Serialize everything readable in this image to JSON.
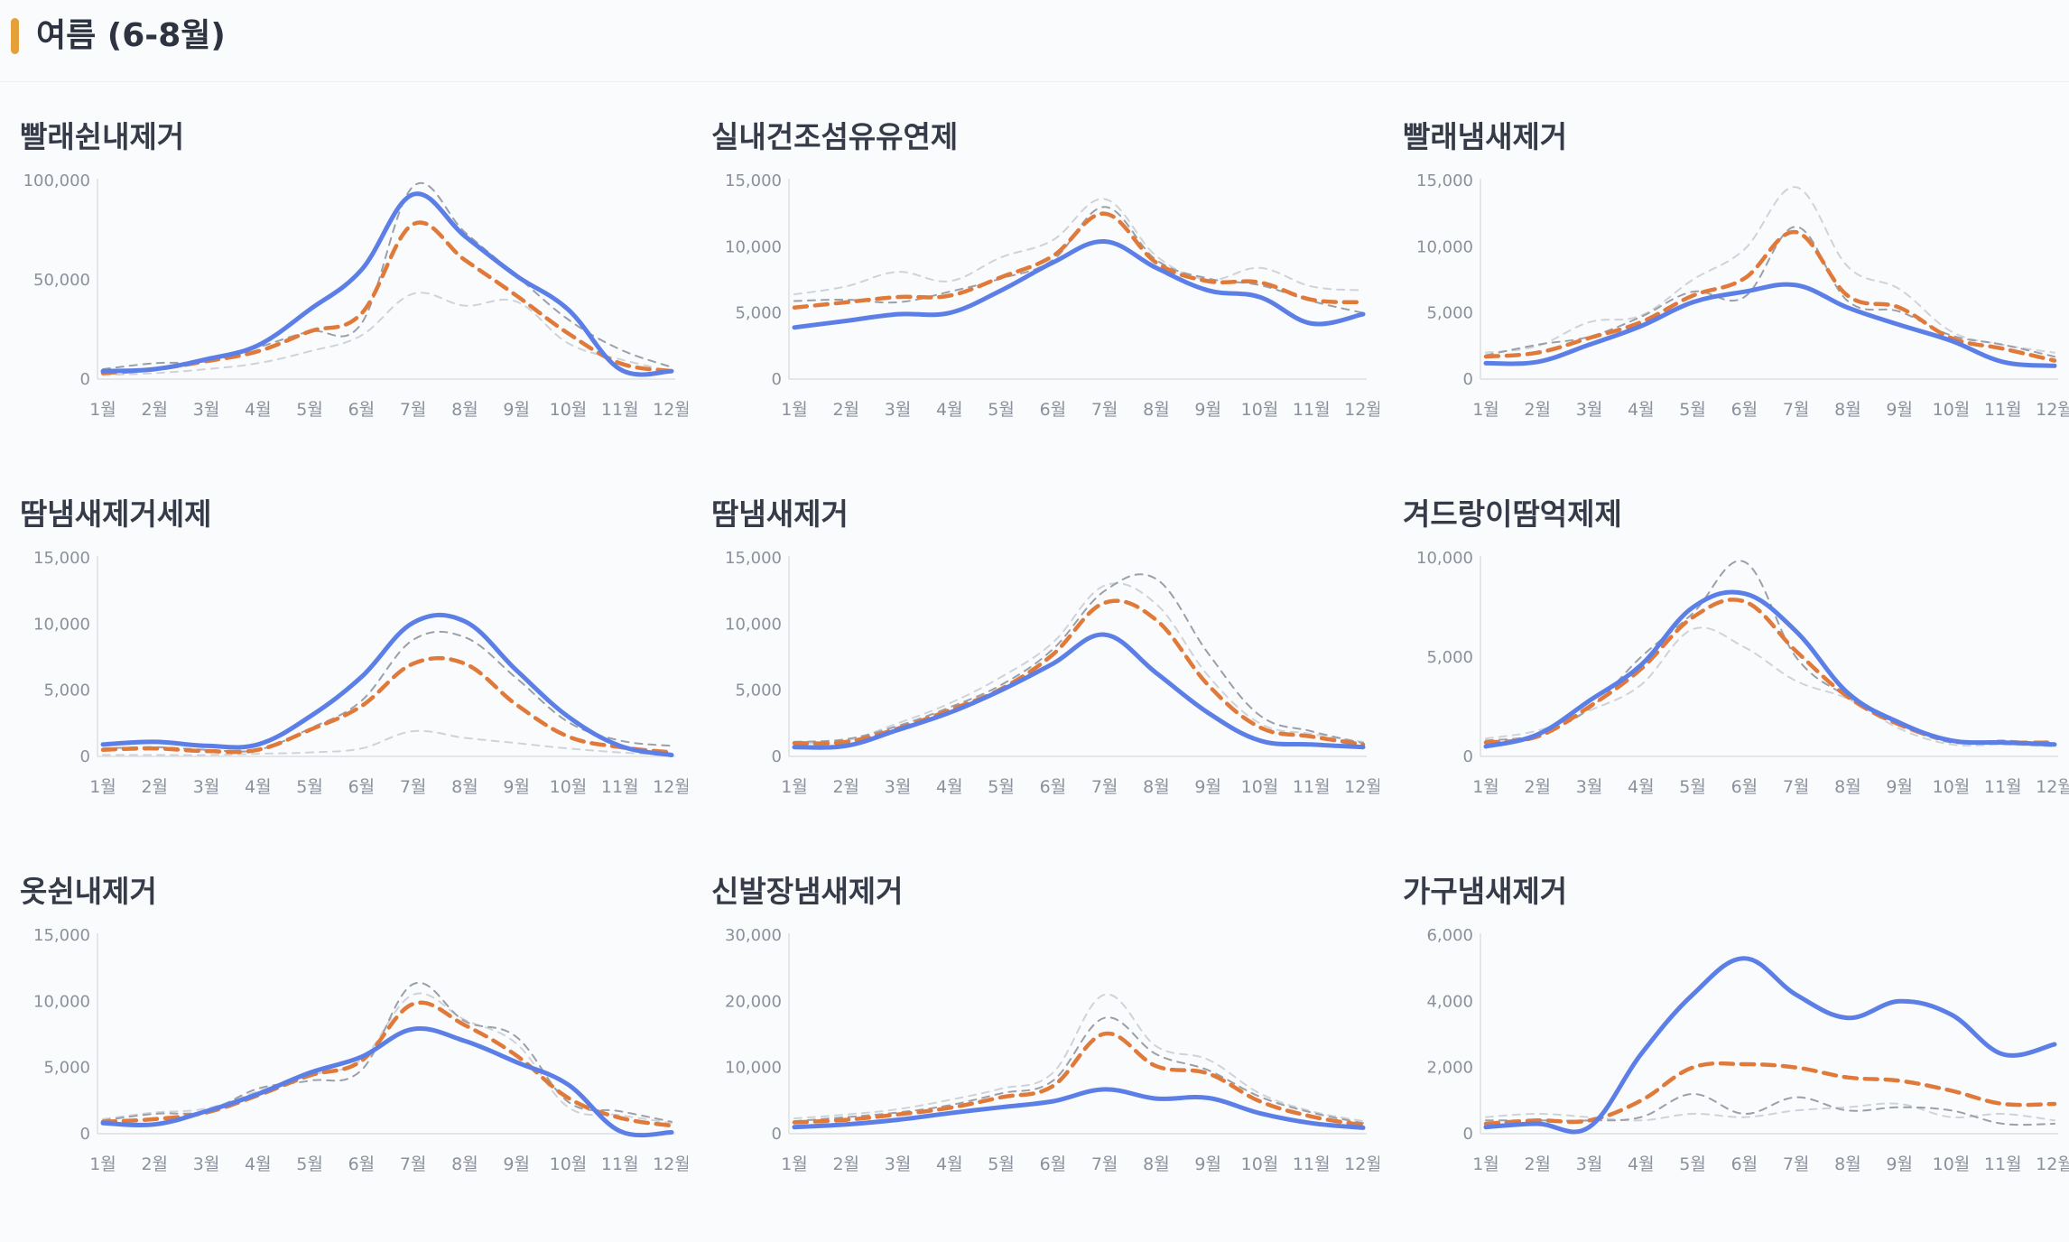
{
  "section": {
    "title": "여름 (6-8월)",
    "accent_color": "#e5a03a"
  },
  "colors": {
    "primary": "#5b7fe6",
    "secondary": "#e07a3a",
    "grid_dark": "#9aa0aa",
    "grid_light": "#cfd3d9"
  },
  "chart_data": [
    {
      "type": "line",
      "title": "빨래쉰내제거",
      "categories": [
        "1월",
        "2월",
        "3월",
        "4월",
        "5월",
        "6월",
        "7월",
        "8월",
        "9월",
        "10월",
        "11월",
        "12월"
      ],
      "ylim": [
        0,
        100000
      ],
      "yticks": [
        0,
        50000,
        100000
      ],
      "ytick_labels": [
        "0",
        "50,000",
        "100,000"
      ],
      "series": [
        {
          "style": "solid",
          "values": [
            4000,
            5000,
            10000,
            17000,
            35000,
            55000,
            93000,
            72000,
            52000,
            35000,
            5000,
            4000
          ]
        },
        {
          "style": "dashed",
          "values": [
            3000,
            5000,
            9000,
            14000,
            24000,
            33000,
            78000,
            60000,
            42000,
            23000,
            8000,
            4000
          ]
        },
        {
          "style": "grey",
          "values": [
            5000,
            8000,
            9000,
            16000,
            24000,
            28000,
            97000,
            74000,
            52000,
            30000,
            15000,
            6000
          ]
        },
        {
          "style": "light",
          "values": [
            2000,
            3000,
            5000,
            8000,
            14000,
            22000,
            43000,
            37000,
            39000,
            18000,
            10000,
            4000
          ]
        }
      ]
    },
    {
      "type": "line",
      "title": "실내건조섬유유연제",
      "categories": [
        "1월",
        "2월",
        "3월",
        "4월",
        "5월",
        "6월",
        "7월",
        "8월",
        "9월",
        "10월",
        "11월",
        "12월"
      ],
      "ylim": [
        0,
        15000
      ],
      "yticks": [
        0,
        5000,
        10000,
        15000
      ],
      "ytick_labels": [
        "0",
        "5,000",
        "10,000",
        "15,000"
      ],
      "series": [
        {
          "style": "solid",
          "values": [
            3900,
            4400,
            4900,
            5000,
            6700,
            8800,
            10400,
            8400,
            6700,
            6200,
            4200,
            4900
          ]
        },
        {
          "style": "dashed",
          "values": [
            5400,
            5800,
            6200,
            6300,
            7700,
            9300,
            12500,
            8800,
            7400,
            7300,
            6000,
            5800
          ]
        },
        {
          "style": "grey",
          "values": [
            5900,
            6000,
            5800,
            6600,
            7600,
            9000,
            13000,
            9000,
            7600,
            7100,
            5900,
            5000
          ]
        },
        {
          "style": "light",
          "values": [
            6400,
            7000,
            8100,
            7400,
            9200,
            10500,
            13600,
            9300,
            7500,
            8400,
            7000,
            6700
          ]
        }
      ]
    },
    {
      "type": "line",
      "title": "빨래냄새제거",
      "categories": [
        "1월",
        "2월",
        "3월",
        "4월",
        "5월",
        "6월",
        "7월",
        "8월",
        "9월",
        "10월",
        "11월",
        "12월"
      ],
      "ylim": [
        0,
        15000
      ],
      "yticks": [
        0,
        5000,
        10000,
        15000
      ],
      "ytick_labels": [
        "0",
        "5,000",
        "10,000",
        "15,000"
      ],
      "series": [
        {
          "style": "solid",
          "values": [
            1200,
            1300,
            2600,
            4000,
            5800,
            6600,
            7100,
            5400,
            4100,
            2900,
            1300,
            1000
          ]
        },
        {
          "style": "dashed",
          "values": [
            1700,
            2000,
            3100,
            4300,
            6300,
            7600,
            11100,
            6300,
            5400,
            3100,
            2300,
            1400
          ]
        },
        {
          "style": "grey",
          "values": [
            1800,
            2600,
            3200,
            4700,
            6600,
            6200,
            11500,
            5900,
            5100,
            3300,
            2600,
            1700
          ]
        },
        {
          "style": "light",
          "values": [
            2000,
            2500,
            4300,
            4800,
            7500,
            9800,
            14500,
            8500,
            6800,
            3600,
            2600,
            2000
          ]
        }
      ]
    },
    {
      "type": "line",
      "title": "땀냄새제거세제",
      "categories": [
        "1월",
        "2월",
        "3월",
        "4월",
        "5월",
        "6월",
        "7월",
        "8월",
        "9월",
        "10월",
        "11월",
        "12월"
      ],
      "ylim": [
        0,
        15000
      ],
      "yticks": [
        0,
        5000,
        10000,
        15000
      ],
      "ytick_labels": [
        "0",
        "5,000",
        "10,000",
        "15,000"
      ],
      "series": [
        {
          "style": "solid",
          "values": [
            900,
            1100,
            800,
            900,
            3000,
            6000,
            10100,
            10200,
            6500,
            3000,
            800,
            100
          ]
        },
        {
          "style": "dashed",
          "values": [
            500,
            600,
            400,
            500,
            2000,
            3800,
            7000,
            7000,
            3900,
            1500,
            700,
            300
          ]
        },
        {
          "style": "grey",
          "values": [
            600,
            700,
            500,
            500,
            2100,
            4200,
            8800,
            9000,
            5900,
            2600,
            1200,
            800
          ]
        },
        {
          "style": "light",
          "values": [
            100,
            100,
            100,
            200,
            300,
            600,
            1900,
            1400,
            1000,
            600,
            300,
            100
          ]
        }
      ]
    },
    {
      "type": "line",
      "title": "땀냄새제거",
      "categories": [
        "1월",
        "2월",
        "3월",
        "4월",
        "5월",
        "6월",
        "7월",
        "8월",
        "9월",
        "10월",
        "11월",
        "12월"
      ],
      "ylim": [
        0,
        15000
      ],
      "yticks": [
        0,
        5000,
        10000,
        15000
      ],
      "ytick_labels": [
        "0",
        "5,000",
        "10,000",
        "15,000"
      ],
      "series": [
        {
          "style": "solid",
          "values": [
            700,
            800,
            2000,
            3300,
            5000,
            7000,
            9200,
            6300,
            3300,
            1200,
            900,
            700
          ]
        },
        {
          "style": "dashed",
          "values": [
            1000,
            1100,
            2100,
            3500,
            5100,
            7700,
            11600,
            10300,
            5400,
            2200,
            1500,
            900
          ]
        },
        {
          "style": "grey",
          "values": [
            1100,
            1300,
            2300,
            3700,
            5400,
            8100,
            12500,
            13400,
            7800,
            3100,
            1900,
            1000
          ]
        },
        {
          "style": "light",
          "values": [
            1000,
            1200,
            2500,
            4000,
            6000,
            8600,
            12900,
            11500,
            6100,
            2500,
            1700,
            1100
          ]
        }
      ]
    },
    {
      "type": "line",
      "title": "겨드랑이땀억제제",
      "categories": [
        "1월",
        "2월",
        "3월",
        "4월",
        "5월",
        "6월",
        "7월",
        "8월",
        "9월",
        "10월",
        "11월",
        "12월"
      ],
      "ylim": [
        0,
        10000
      ],
      "yticks": [
        0,
        5000,
        10000
      ],
      "ytick_labels": [
        "0",
        "5,000",
        "10,000"
      ],
      "series": [
        {
          "style": "solid",
          "values": [
            500,
            1100,
            2800,
            4600,
            7500,
            8200,
            6300,
            3200,
            1700,
            800,
            700,
            600
          ]
        },
        {
          "style": "dashed",
          "values": [
            700,
            1000,
            2500,
            4400,
            7000,
            7800,
            5300,
            3000,
            1600,
            800,
            700,
            700
          ]
        },
        {
          "style": "grey",
          "values": [
            800,
            1100,
            2400,
            5000,
            7200,
            9800,
            5000,
            3000,
            1600,
            700,
            800,
            600
          ]
        },
        {
          "style": "light",
          "values": [
            900,
            1300,
            2300,
            3600,
            6400,
            5500,
            3800,
            2900,
            1400,
            600,
            600,
            500
          ]
        }
      ]
    },
    {
      "type": "line",
      "title": "옷쉰내제거",
      "categories": [
        "1월",
        "2월",
        "3월",
        "4월",
        "5월",
        "6월",
        "7월",
        "8월",
        "9월",
        "10월",
        "11월",
        "12월"
      ],
      "ylim": [
        0,
        15000
      ],
      "yticks": [
        0,
        5000,
        10000,
        15000
      ],
      "ytick_labels": [
        "0",
        "5,000",
        "10,000",
        "15,000"
      ],
      "series": [
        {
          "style": "solid",
          "values": [
            800,
            700,
            1700,
            3000,
            4600,
            5800,
            7900,
            7000,
            5400,
            3700,
            200,
            100
          ]
        },
        {
          "style": "dashed",
          "values": [
            900,
            1100,
            1600,
            2900,
            4400,
            5500,
            9800,
            8200,
            5900,
            2700,
            1200,
            600
          ]
        },
        {
          "style": "grey",
          "values": [
            1000,
            1500,
            1700,
            3400,
            4000,
            4800,
            11300,
            8500,
            7300,
            2400,
            1700,
            900
          ]
        },
        {
          "style": "light",
          "values": [
            1100,
            1600,
            1900,
            3200,
            4400,
            5600,
            10500,
            8600,
            6800,
            2000,
            1400,
            800
          ]
        }
      ]
    },
    {
      "type": "line",
      "title": "신발장냄새제거",
      "categories": [
        "1월",
        "2월",
        "3월",
        "4월",
        "5월",
        "6월",
        "7월",
        "8월",
        "9월",
        "10월",
        "11월",
        "12월"
      ],
      "ylim": [
        0,
        30000
      ],
      "yticks": [
        0,
        10000,
        20000,
        30000
      ],
      "ytick_labels": [
        "0",
        "10,000",
        "20,000",
        "30,000"
      ],
      "series": [
        {
          "style": "solid",
          "values": [
            1000,
            1400,
            2100,
            3100,
            4000,
            4900,
            6700,
            5300,
            5400,
            3100,
            1600,
            900
          ]
        },
        {
          "style": "dashed",
          "values": [
            1700,
            2100,
            2900,
            3900,
            5500,
            7200,
            15100,
            10200,
            9100,
            4900,
            2600,
            1300
          ]
        },
        {
          "style": "grey",
          "values": [
            1900,
            2500,
            3200,
            4300,
            6100,
            8000,
            17500,
            12000,
            9600,
            5600,
            3200,
            1600
          ]
        },
        {
          "style": "light",
          "values": [
            2300,
            2900,
            3700,
            5100,
            6800,
            9200,
            21000,
            13200,
            11200,
            6100,
            3400,
            1900
          ]
        }
      ]
    },
    {
      "type": "line",
      "title": "가구냄새제거",
      "categories": [
        "1월",
        "2월",
        "3월",
        "4월",
        "5월",
        "6월",
        "7월",
        "8월",
        "9월",
        "10월",
        "11월",
        "12월"
      ],
      "ylim": [
        0,
        6000
      ],
      "yticks": [
        0,
        2000,
        4000,
        6000
      ],
      "ytick_labels": [
        "0",
        "2,000",
        "4,000",
        "6,000"
      ],
      "series": [
        {
          "style": "solid",
          "values": [
            200,
            300,
            200,
            2400,
            4200,
            5300,
            4200,
            3500,
            4000,
            3600,
            2400,
            2700
          ]
        },
        {
          "style": "dashed",
          "values": [
            300,
            400,
            400,
            1000,
            2000,
            2100,
            2000,
            1700,
            1600,
            1300,
            900,
            900
          ]
        },
        {
          "style": "grey",
          "values": [
            400,
            400,
            400,
            500,
            1200,
            600,
            1100,
            700,
            800,
            700,
            300,
            300
          ]
        },
        {
          "style": "light",
          "values": [
            500,
            600,
            500,
            400,
            600,
            500,
            700,
            800,
            900,
            500,
            600,
            400
          ]
        }
      ]
    }
  ]
}
